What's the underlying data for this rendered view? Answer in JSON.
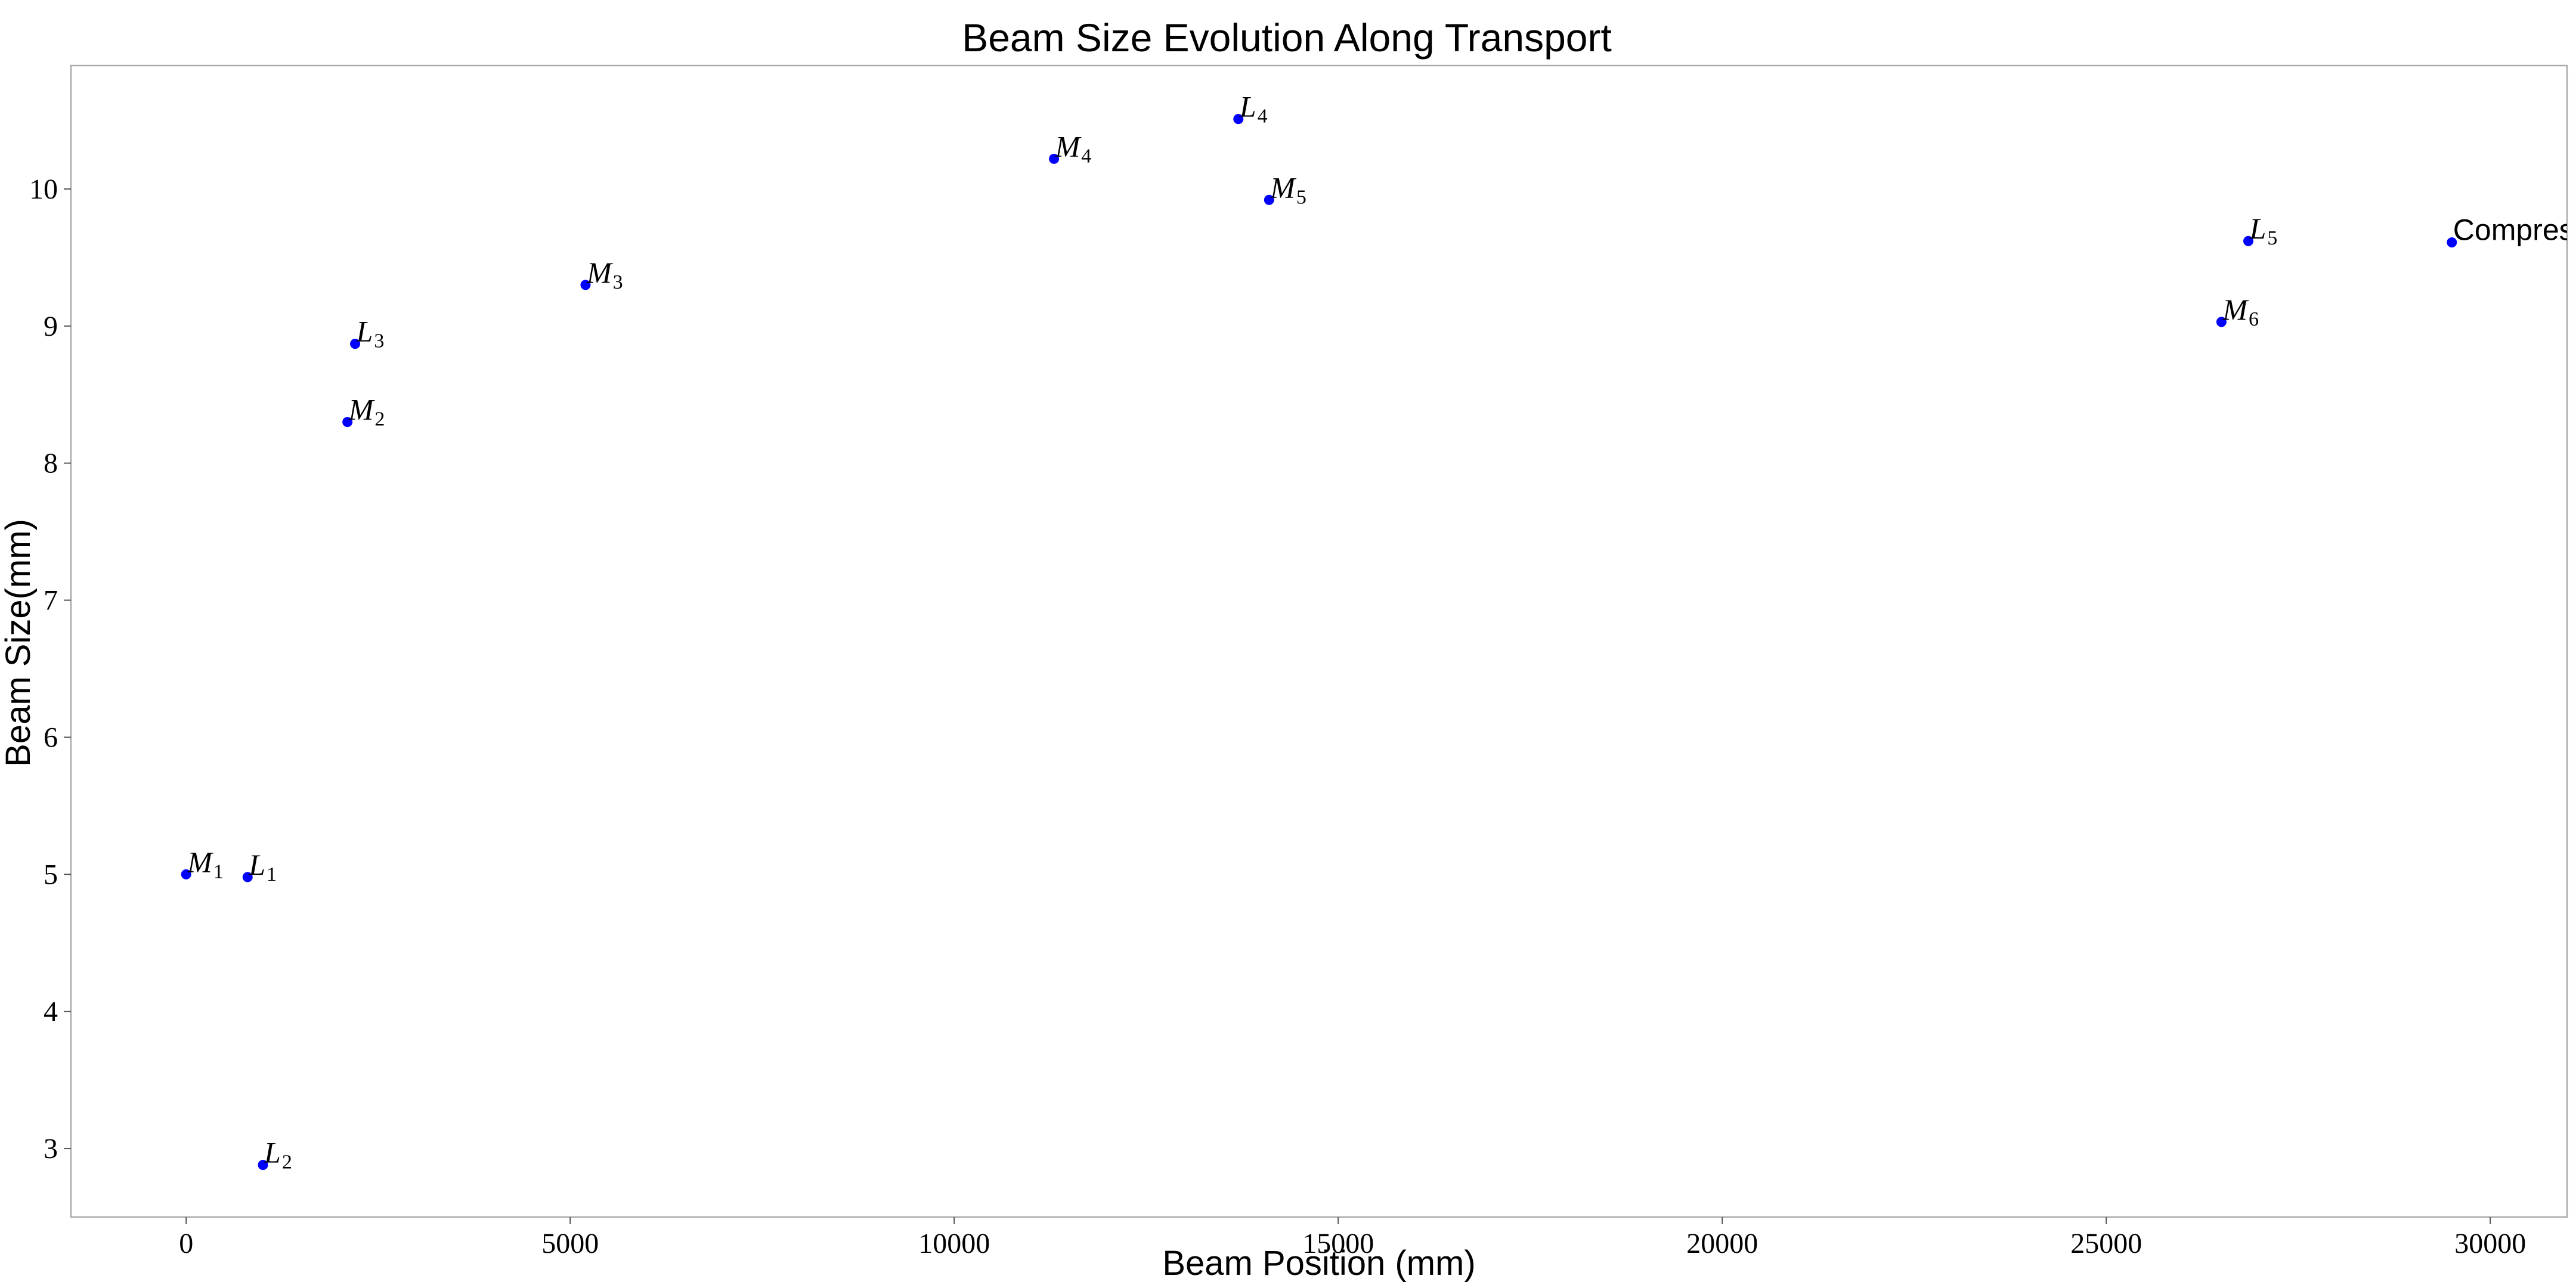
{
  "chart_data": {
    "type": "scatter",
    "title": "Beam Size Evolution Along Transport",
    "xlabel": "Beam Position (mm)",
    "ylabel": "Beam Size(mm)",
    "xlim": [
      -1500,
      31000
    ],
    "ylim": [
      2.5,
      10.9
    ],
    "xticks": [
      0,
      5000,
      10000,
      15000,
      20000,
      25000,
      30000
    ],
    "yticks": [
      3,
      4,
      5,
      6,
      7,
      8,
      9,
      10
    ],
    "grid": false,
    "point_color": "#0000ff",
    "points": [
      {
        "label": "M",
        "subscript": "1",
        "x": 0,
        "y": 5.0
      },
      {
        "label": "L",
        "subscript": "1",
        "x": 800,
        "y": 4.98
      },
      {
        "label": "L",
        "subscript": "2",
        "x": 1000,
        "y": 2.88
      },
      {
        "label": "M",
        "subscript": "2",
        "x": 2100,
        "y": 8.3
      },
      {
        "label": "L",
        "subscript": "3",
        "x": 2200,
        "y": 8.87
      },
      {
        "label": "M",
        "subscript": "3",
        "x": 5200,
        "y": 9.3
      },
      {
        "label": "M",
        "subscript": "4",
        "x": 11300,
        "y": 10.22
      },
      {
        "label": "L",
        "subscript": "4",
        "x": 13700,
        "y": 10.51
      },
      {
        "label": "M",
        "subscript": "5",
        "x": 14100,
        "y": 9.92
      },
      {
        "label": "M",
        "subscript": "6",
        "x": 26500,
        "y": 9.03
      },
      {
        "label": "L",
        "subscript": "5",
        "x": 26850,
        "y": 9.62
      },
      {
        "label": "Compressor",
        "subscript": "",
        "x": 29500,
        "y": 9.61
      }
    ]
  }
}
